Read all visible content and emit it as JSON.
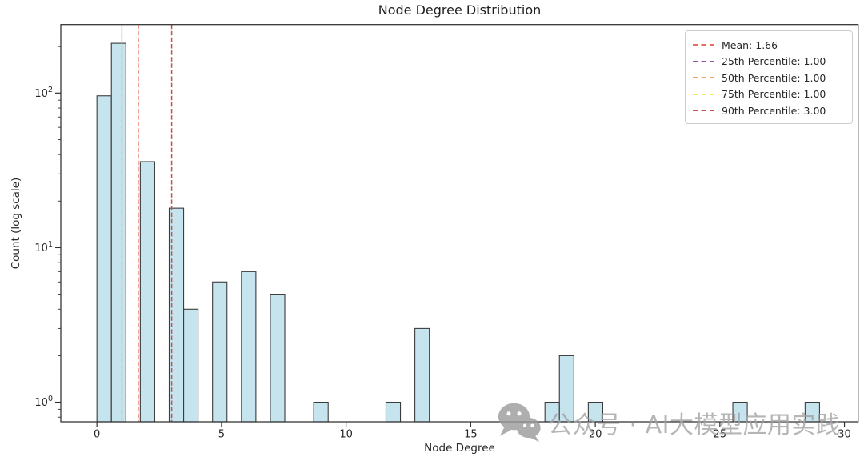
{
  "figure": {
    "background": "#ffffff"
  },
  "chart_data": {
    "type": "bar",
    "title": "Node Degree Distribution",
    "xlabel": "Node Degree",
    "ylabel": "Count (log scale)",
    "yscale": "log",
    "grid": false,
    "xlim": [
      -1.45,
      30.55
    ],
    "ylim": [
      0.747,
      277.6
    ],
    "x_ticks": [
      0,
      5,
      10,
      15,
      20,
      25,
      30
    ],
    "y_ticks": [
      {
        "value": 1,
        "base": "10",
        "exp": "0"
      },
      {
        "value": 10,
        "base": "10",
        "exp": "1"
      },
      {
        "value": 100,
        "base": "10",
        "exp": "2"
      }
    ],
    "bar_fill": "#add8e6",
    "bar_fill_opacity": 0.7,
    "bar_edge": "#3c3c3c",
    "histogram": {
      "bins": 50,
      "range": [
        0,
        29
      ],
      "data": [
        {
          "degree": 0,
          "count": 96
        },
        {
          "degree": 1,
          "count": 210
        },
        {
          "degree": 2,
          "count": 36
        },
        {
          "degree": 3,
          "count": 18
        },
        {
          "degree": 4,
          "count": 4
        },
        {
          "degree": 5,
          "count": 6
        },
        {
          "degree": 6,
          "count": 7
        },
        {
          "degree": 7,
          "count": 5
        },
        {
          "degree": 9,
          "count": 1
        },
        {
          "degree": 12,
          "count": 1
        },
        {
          "degree": 13,
          "count": 3
        },
        {
          "degree": 18,
          "count": 1
        },
        {
          "degree": 19,
          "count": 2
        },
        {
          "degree": 20,
          "count": 1
        },
        {
          "degree": 26,
          "count": 1
        },
        {
          "degree": 29,
          "count": 1
        }
      ]
    }
  },
  "legend": {
    "items": [
      {
        "label": "Mean: 1.66",
        "value": 1.66,
        "color": "#ee6a5f"
      },
      {
        "label": "25th Percentile: 1.00",
        "value": 1.0,
        "color": "#9651a8"
      },
      {
        "label": "50th Percentile: 1.00",
        "value": 1.0,
        "color": "#f5a455"
      },
      {
        "label": "75th Percentile: 1.00",
        "value": 1.0,
        "color": "#f3e95c"
      },
      {
        "label": "90th Percentile: 3.00",
        "value": 3.0,
        "color": "#c35052"
      }
    ]
  },
  "watermark": {
    "icon": "wechat-icon",
    "text": "公众号 · AI大模型应用实践",
    "color": "#a3a3a3"
  }
}
